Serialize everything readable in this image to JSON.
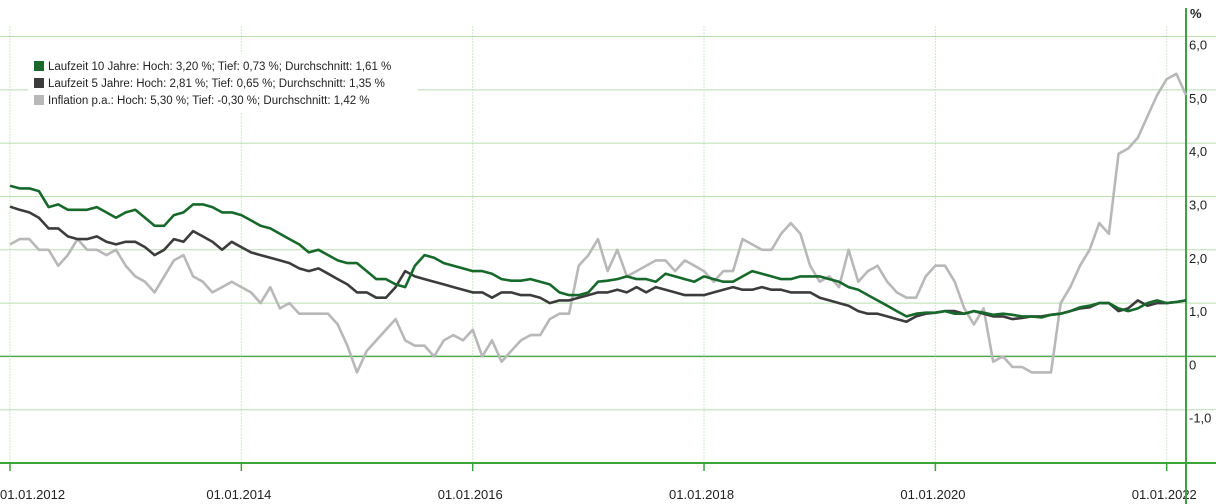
{
  "chart_data": {
    "type": "line",
    "y_label": "%",
    "x": [
      "2012-01-01",
      "2012-02-01",
      "2012-03-01",
      "2012-04-01",
      "2012-05-01",
      "2012-06-01",
      "2012-07-01",
      "2012-08-01",
      "2012-09-01",
      "2012-10-01",
      "2012-11-01",
      "2012-12-01",
      "2013-01-01",
      "2013-02-01",
      "2013-03-01",
      "2013-04-01",
      "2013-05-01",
      "2013-06-01",
      "2013-07-01",
      "2013-08-01",
      "2013-09-01",
      "2013-10-01",
      "2013-11-01",
      "2013-12-01",
      "2014-01-01",
      "2014-02-01",
      "2014-03-01",
      "2014-04-01",
      "2014-05-01",
      "2014-06-01",
      "2014-07-01",
      "2014-08-01",
      "2014-09-01",
      "2014-10-01",
      "2014-11-01",
      "2014-12-01",
      "2015-01-01",
      "2015-02-01",
      "2015-03-01",
      "2015-04-01",
      "2015-05-01",
      "2015-06-01",
      "2015-07-01",
      "2015-08-01",
      "2015-09-01",
      "2015-10-01",
      "2015-11-01",
      "2015-12-01",
      "2016-01-01",
      "2016-02-01",
      "2016-03-01",
      "2016-04-01",
      "2016-05-01",
      "2016-06-01",
      "2016-07-01",
      "2016-08-01",
      "2016-09-01",
      "2016-10-01",
      "2016-11-01",
      "2016-12-01",
      "2017-01-01",
      "2017-02-01",
      "2017-03-01",
      "2017-04-01",
      "2017-05-01",
      "2017-06-01",
      "2017-07-01",
      "2017-08-01",
      "2017-09-01",
      "2017-10-01",
      "2017-11-01",
      "2017-12-01",
      "2018-01-01",
      "2018-02-01",
      "2018-03-01",
      "2018-04-01",
      "2018-05-01",
      "2018-06-01",
      "2018-07-01",
      "2018-08-01",
      "2018-09-01",
      "2018-10-01",
      "2018-11-01",
      "2018-12-01",
      "2019-01-01",
      "2019-02-01",
      "2019-03-01",
      "2019-04-01",
      "2019-05-01",
      "2019-06-01",
      "2019-07-01",
      "2019-08-01",
      "2019-09-01",
      "2019-10-01",
      "2019-11-01",
      "2019-12-01",
      "2020-01-01",
      "2020-02-01",
      "2020-03-01",
      "2020-04-01",
      "2020-05-01",
      "2020-06-01",
      "2020-07-01",
      "2020-08-01",
      "2020-09-01",
      "2020-10-01",
      "2020-11-01",
      "2020-12-01",
      "2021-01-01",
      "2021-02-01",
      "2021-03-01",
      "2021-04-01",
      "2021-05-01",
      "2021-06-01",
      "2021-07-01",
      "2021-08-01",
      "2021-09-01",
      "2021-10-01",
      "2021-11-01",
      "2021-12-01",
      "2022-01-01",
      "2022-02-01",
      "2022-03-01"
    ],
    "series": [
      {
        "name": "Laufzeit 10 Jahre: Hoch: 3,20 %; Tief: 0,73 %; Durchschnitt: 1,61 %",
        "color": "#17692b",
        "values": [
          3.2,
          3.15,
          3.15,
          3.1,
          2.8,
          2.85,
          2.75,
          2.75,
          2.75,
          2.8,
          2.7,
          2.6,
          2.7,
          2.75,
          2.6,
          2.45,
          2.45,
          2.65,
          2.7,
          2.85,
          2.85,
          2.8,
          2.7,
          2.7,
          2.65,
          2.55,
          2.45,
          2.4,
          2.3,
          2.2,
          2.1,
          1.95,
          2.0,
          1.9,
          1.8,
          1.75,
          1.75,
          1.6,
          1.45,
          1.45,
          1.35,
          1.3,
          1.7,
          1.9,
          1.85,
          1.75,
          1.7,
          1.65,
          1.6,
          1.6,
          1.55,
          1.45,
          1.42,
          1.42,
          1.45,
          1.4,
          1.35,
          1.2,
          1.15,
          1.15,
          1.2,
          1.4,
          1.42,
          1.45,
          1.5,
          1.45,
          1.45,
          1.4,
          1.55,
          1.5,
          1.45,
          1.4,
          1.5,
          1.45,
          1.4,
          1.4,
          1.5,
          1.6,
          1.55,
          1.5,
          1.45,
          1.45,
          1.5,
          1.5,
          1.5,
          1.45,
          1.4,
          1.3,
          1.25,
          1.15,
          1.05,
          0.95,
          0.85,
          0.75,
          0.8,
          0.82,
          0.82,
          0.85,
          0.8,
          0.8,
          0.85,
          0.82,
          0.78,
          0.8,
          0.78,
          0.75,
          0.75,
          0.73,
          0.78,
          0.8,
          0.85,
          0.92,
          0.95,
          1.0,
          1.0,
          0.9,
          0.85,
          0.9,
          1.0,
          1.05,
          1.0,
          1.02,
          1.05
        ]
      },
      {
        "name": "Laufzeit 5 Jahre: Hoch: 2,81 %; Tief: 0,65 %; Durchschnitt: 1,35 %",
        "color": "#3c3c3c",
        "values": [
          2.81,
          2.75,
          2.7,
          2.6,
          2.4,
          2.4,
          2.25,
          2.2,
          2.2,
          2.25,
          2.15,
          2.1,
          2.15,
          2.15,
          2.05,
          1.9,
          2.0,
          2.2,
          2.15,
          2.35,
          2.25,
          2.15,
          2.0,
          2.15,
          2.05,
          1.95,
          1.9,
          1.85,
          1.8,
          1.75,
          1.65,
          1.6,
          1.65,
          1.55,
          1.45,
          1.35,
          1.2,
          1.2,
          1.1,
          1.1,
          1.3,
          1.6,
          1.5,
          1.45,
          1.4,
          1.35,
          1.3,
          1.25,
          1.2,
          1.2,
          1.1,
          1.2,
          1.2,
          1.15,
          1.15,
          1.1,
          1.0,
          1.05,
          1.05,
          1.1,
          1.15,
          1.2,
          1.2,
          1.25,
          1.2,
          1.3,
          1.2,
          1.3,
          1.25,
          1.2,
          1.15,
          1.15,
          1.15,
          1.2,
          1.25,
          1.3,
          1.25,
          1.25,
          1.3,
          1.25,
          1.25,
          1.2,
          1.2,
          1.2,
          1.1,
          1.05,
          1.0,
          0.95,
          0.85,
          0.8,
          0.8,
          0.75,
          0.7,
          0.65,
          0.75,
          0.8,
          0.82,
          0.85,
          0.85,
          0.8,
          0.85,
          0.8,
          0.75,
          0.75,
          0.7,
          0.72,
          0.75,
          0.75,
          0.78,
          0.8,
          0.85,
          0.9,
          0.92,
          1.0,
          1.0,
          0.85,
          0.9,
          1.05,
          0.95,
          1.0,
          1.0,
          1.02,
          1.05
        ]
      },
      {
        "name": "Inflation p.a.: Hoch: 5,30 %; Tief: -0,30 %; Durchschnitt: 1,42 %",
        "color": "#b8b8b8",
        "values": [
          2.1,
          2.2,
          2.2,
          2.0,
          2.0,
          1.7,
          1.9,
          2.2,
          2.0,
          2.0,
          1.9,
          2.0,
          1.7,
          1.5,
          1.4,
          1.2,
          1.5,
          1.8,
          1.9,
          1.5,
          1.4,
          1.2,
          1.3,
          1.4,
          1.3,
          1.2,
          1.0,
          1.3,
          0.9,
          1.0,
          0.8,
          0.8,
          0.8,
          0.8,
          0.6,
          0.2,
          -0.3,
          0.1,
          0.3,
          0.5,
          0.7,
          0.3,
          0.2,
          0.2,
          0.0,
          0.3,
          0.4,
          0.3,
          0.5,
          0.0,
          0.3,
          -0.1,
          0.1,
          0.3,
          0.4,
          0.4,
          0.7,
          0.8,
          0.8,
          1.7,
          1.9,
          2.2,
          1.6,
          2.0,
          1.5,
          1.6,
          1.7,
          1.8,
          1.8,
          1.6,
          1.8,
          1.7,
          1.6,
          1.4,
          1.6,
          1.6,
          2.2,
          2.1,
          2.0,
          2.0,
          2.3,
          2.5,
          2.3,
          1.7,
          1.4,
          1.5,
          1.3,
          2.0,
          1.4,
          1.6,
          1.7,
          1.4,
          1.2,
          1.1,
          1.1,
          1.5,
          1.7,
          1.7,
          1.4,
          0.9,
          0.6,
          0.9,
          -0.1,
          0.0,
          -0.2,
          -0.2,
          -0.3,
          -0.3,
          -0.3,
          1.0,
          1.3,
          1.7,
          2.0,
          2.5,
          2.3,
          3.8,
          3.9,
          4.1,
          4.5,
          4.9,
          5.2,
          5.3,
          4.9
        ]
      }
    ],
    "xlim": [
      "2012-01-01",
      "2022-03-01"
    ],
    "xticks": [
      {
        "value": "2012-01-01",
        "label": "01.01.2012"
      },
      {
        "value": "2014-01-01",
        "label": "01.01.2014"
      },
      {
        "value": "2016-01-01",
        "label": "01.01.2016"
      },
      {
        "value": "2018-01-01",
        "label": "01.01.2018"
      },
      {
        "value": "2020-01-01",
        "label": "01.01.2020"
      },
      {
        "value": "2022-01-01",
        "label": "01.01.2022"
      }
    ],
    "ylim": [
      -2,
      6
    ],
    "yticks": [
      {
        "value": -1,
        "label": "-1,0"
      },
      0,
      {
        "value": 1,
        "label": "1,0"
      },
      {
        "value": 2,
        "label": "2,0"
      },
      {
        "value": 3,
        "label": "3,0"
      },
      {
        "value": 4,
        "label": "4,0"
      },
      {
        "value": 5,
        "label": "5,0"
      },
      {
        "value": 6,
        "label": "6,0"
      }
    ],
    "grid": true,
    "legend": "upper left"
  }
}
